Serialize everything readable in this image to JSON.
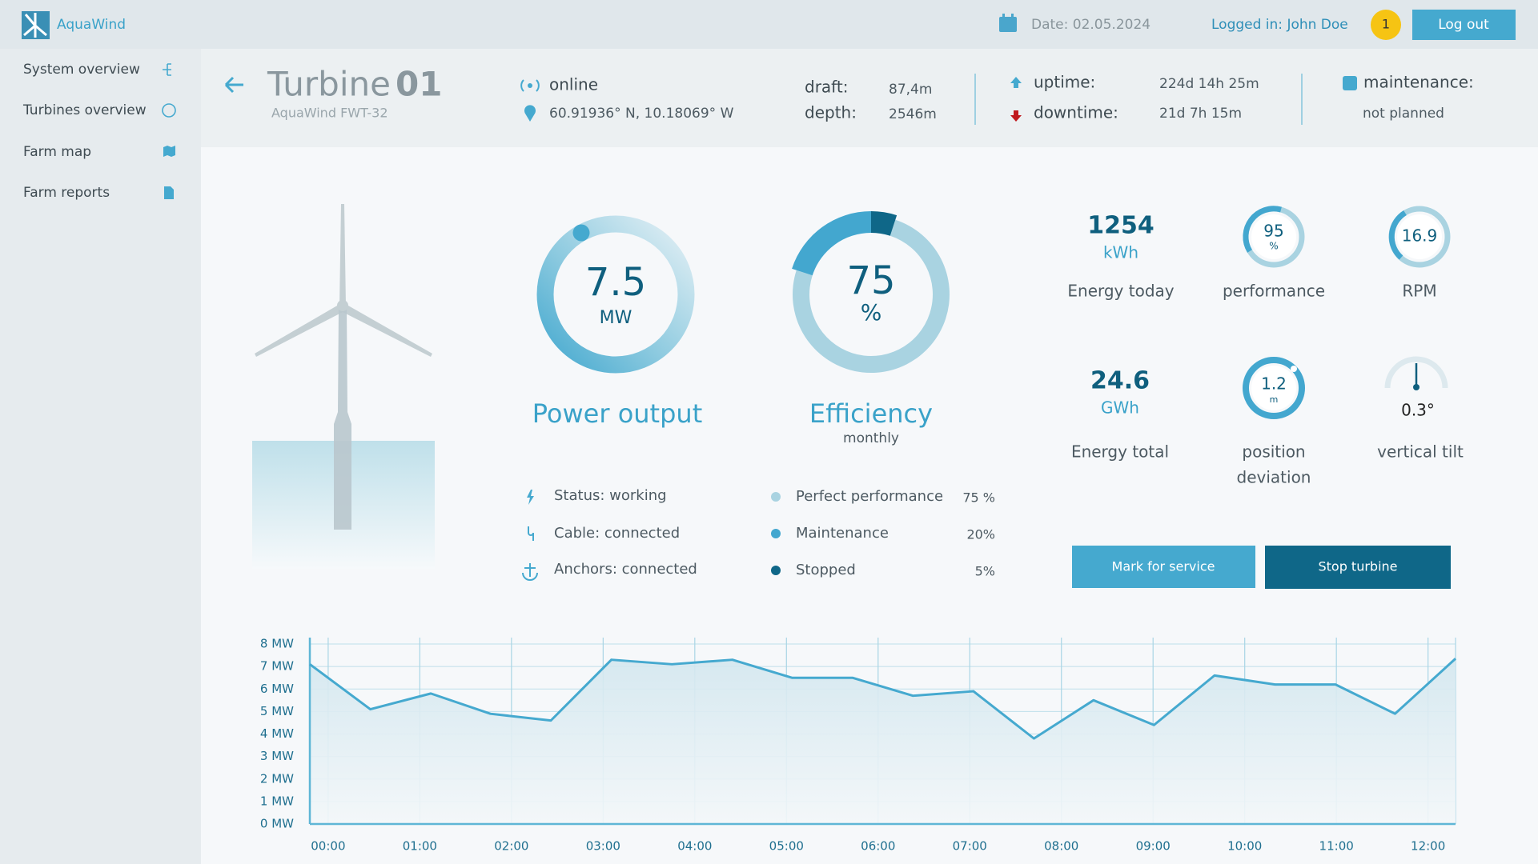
{
  "header": {
    "brand": "AquaWind",
    "date": "Date: 02.05.2024",
    "user": "Logged in: John Doe",
    "notifications": "1",
    "logout": "Log out"
  },
  "sidebar": {
    "items": [
      "System overview",
      "Turbines overview",
      "Farm map",
      "Farm reports"
    ]
  },
  "turbine": {
    "name": "Turbine",
    "number": "01",
    "model": "AquaWind FWT-32",
    "status": "online",
    "coords": "60.91936° N, 10.18069° W",
    "draft_label": "draft:",
    "draft": "87,4m",
    "depth_label": "depth:",
    "depth": "2546m",
    "uptime_label": "uptime:",
    "uptime": "224d 14h 25m",
    "downtime_label": "downtime:",
    "downtime": "21d 7h 15m",
    "maintenance_label": "maintenance:",
    "maintenance": "not planned"
  },
  "power": {
    "value": "7.5",
    "unit": "MW",
    "label": "Power output"
  },
  "status": [
    "Status: working",
    "Cable: connected",
    "Anchors: connected"
  ],
  "metrics": {
    "energy_today": {
      "value": "1254",
      "unit": "kWh",
      "label": "Energy today"
    },
    "performance": {
      "value": "95",
      "unit": "%",
      "label": "performance"
    },
    "rpm": {
      "value": "16.9",
      "label": "RPM"
    },
    "energy_total": {
      "value": "24.6",
      "unit": "GWh",
      "label": "Energy total"
    },
    "position_deviation": {
      "value": "1.2",
      "unit": "m",
      "label": [
        "position",
        "deviation"
      ]
    },
    "vertical_tilt": {
      "value": "0.3°",
      "label": "vertical tilt"
    }
  },
  "actions": [
    "Mark for service",
    "Stop turbine"
  ],
  "chart_data": [
    {
      "type": "pie",
      "title": "Efficiency",
      "subtitle": "monthly",
      "center_unit": "%",
      "categories": [
        "Perfect performance",
        "Maintenance",
        "Stopped"
      ],
      "values": [
        75,
        20,
        5
      ],
      "value_labels": [
        "75 %",
        "20%",
        "5%"
      ],
      "colors": [
        "#a9d3e1",
        "#43a7cf",
        "#0f6788"
      ]
    },
    {
      "type": "line",
      "color": "#45a9cf",
      "x": [
        -0.2,
        0.46,
        1.12,
        1.77,
        2.43,
        3.09,
        3.75,
        4.41,
        5.06,
        5.72,
        6.38,
        7.04,
        7.7,
        8.35,
        9.01,
        9.67,
        10.33,
        10.99,
        11.64,
        12.3
      ],
      "values": [
        7.1,
        5.1,
        5.8,
        4.9,
        4.6,
        7.3,
        7.1,
        7.3,
        6.5,
        6.5,
        5.7,
        5.9,
        3.8,
        5.5,
        4.4,
        6.6,
        6.2,
        6.2,
        4.9,
        7.35
      ],
      "xlim": [
        -0.2,
        12.3
      ],
      "xticks": [
        {
          "value": 0,
          "label": "00:00"
        },
        {
          "value": 1,
          "label": "01:00"
        },
        {
          "value": 2,
          "label": "02:00"
        },
        {
          "value": 3,
          "label": "03:00"
        },
        {
          "value": 4,
          "label": "04:00"
        },
        {
          "value": 5,
          "label": "05:00"
        },
        {
          "value": 6,
          "label": "06:00"
        },
        {
          "value": 7,
          "label": "07:00"
        },
        {
          "value": 8,
          "label": "08:00"
        },
        {
          "value": 9,
          "label": "09:00"
        },
        {
          "value": 10,
          "label": "10:00"
        },
        {
          "value": 11,
          "label": "11:00"
        },
        {
          "value": 12,
          "label": "12:00"
        }
      ],
      "ylim": [
        0,
        8
      ],
      "yticks": [
        {
          "value": 0,
          "label": "0 MW"
        },
        {
          "value": 1,
          "label": "1 MW"
        },
        {
          "value": 2,
          "label": "2 MW"
        },
        {
          "value": 3,
          "label": "3 MW"
        },
        {
          "value": 4,
          "label": "4 MW"
        },
        {
          "value": 5,
          "label": "5 MW"
        },
        {
          "value": 6,
          "label": "6 MW"
        },
        {
          "value": 7,
          "label": "7 MW"
        },
        {
          "value": 8,
          "label": "8 MW"
        }
      ],
      "grid": true
    }
  ]
}
